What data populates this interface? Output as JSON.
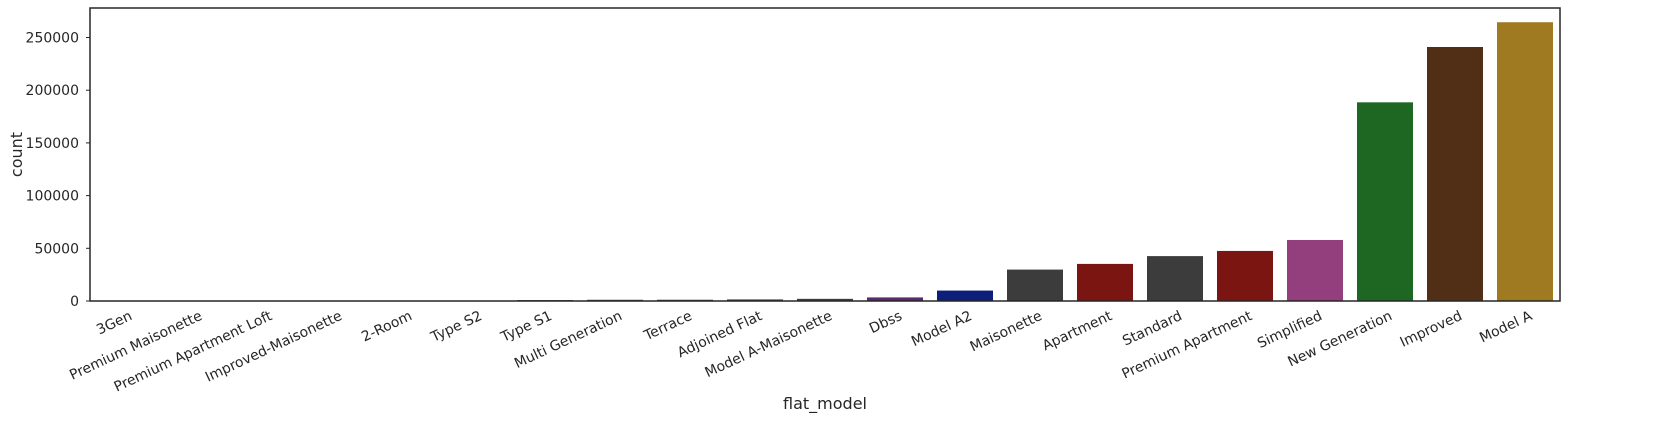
{
  "chart_data": {
    "type": "bar",
    "xlabel": "flat_model",
    "ylabel": "count",
    "ylim": [
      0,
      278000
    ],
    "yticks": [
      0,
      50000,
      100000,
      150000,
      200000,
      250000
    ],
    "ytick_labels": [
      "0",
      "50000",
      "100000",
      "150000",
      "200000",
      "250000"
    ],
    "grid": false,
    "categories": [
      "3Gen",
      "Premium Maisonette",
      "Premium Apartment Loft",
      "Improved-Maisonette",
      "2-Room",
      "Type S2",
      "Type S1",
      "Multi Generation",
      "Terrace",
      "Adjoined Flat",
      "Model A-Maisonette",
      "Dbss",
      "Model A2",
      "Maisonette",
      "Apartment",
      "Standard",
      "Premium Apartment",
      "Simplified",
      "New Generation",
      "Improved",
      "Model A"
    ],
    "values": [
      90,
      90,
      170,
      220,
      300,
      440,
      880,
      1170,
      1200,
      1500,
      2050,
      3400,
      9900,
      29800,
      35200,
      42600,
      47500,
      57900,
      188500,
      241000,
      264500
    ],
    "colors": [
      "#3c3c3c",
      "#3c3c3c",
      "#3c3c3c",
      "#3c3c3c",
      "#3c3c3c",
      "#3c3c3c",
      "#3c3c3c",
      "#3c3c3c",
      "#3c3c3c",
      "#3c3c3c",
      "#3c3c3c",
      "#5b2a6e",
      "#0c1f7a",
      "#3c3c3c",
      "#7a1512",
      "#3c3c3c",
      "#7a1512",
      "#933f7e",
      "#1d6723",
      "#512f17",
      "#a07a20"
    ]
  }
}
